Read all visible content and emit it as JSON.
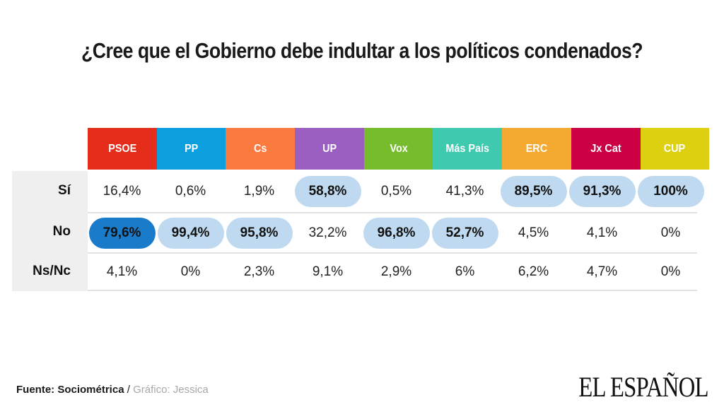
{
  "title": "¿Cree que el Gobierno debe indultar a los políticos condenados?",
  "chart_data": {
    "type": "table",
    "title": "¿Cree que el Gobierno debe indultar a los políticos condenados?",
    "columns": [
      {
        "label": "PSOE",
        "color": "#e52d1c"
      },
      {
        "label": "PP",
        "color": "#0b9fe0"
      },
      {
        "label": "Cs",
        "color": "#fb7a3f"
      },
      {
        "label": "UP",
        "color": "#9b5fc2"
      },
      {
        "label": "Vox",
        "color": "#75bd2c"
      },
      {
        "label": "Más País",
        "color": "#3fcab0"
      },
      {
        "label": "ERC",
        "color": "#f4aa31"
      },
      {
        "label": "Jx Cat",
        "color": "#cc0044"
      },
      {
        "label": "CUP",
        "color": "#dcd010"
      }
    ],
    "rows": [
      {
        "label": "Sí",
        "values": [
          "16,4%",
          "0,6%",
          "1,9%",
          "58,8%",
          "0,5%",
          "41,3%",
          "89,5%",
          "91,3%",
          "100%"
        ],
        "highlight": [
          "",
          "",
          "",
          "light",
          "",
          "",
          "light",
          "light",
          "light"
        ]
      },
      {
        "label": "No",
        "values": [
          "79,6%",
          "99,4%",
          "95,8%",
          "32,2%",
          "96,8%",
          "52,7%",
          "4,5%",
          "4,1%",
          "0%"
        ],
        "highlight": [
          "dark",
          "light",
          "light",
          "",
          "light",
          "light",
          "",
          "",
          ""
        ]
      },
      {
        "label": "Ns/Nc",
        "values": [
          "4,1%",
          "0%",
          "2,3%",
          "9,1%",
          "2,9%",
          "6%",
          "6,2%",
          "4,7%",
          "0%"
        ],
        "highlight": [
          "",
          "",
          "",
          "",
          "",
          "",
          "",
          "",
          ""
        ]
      }
    ]
  },
  "footer": {
    "source": "Fuente: Sociométrica",
    "separator": " / ",
    "credit": "Gráfico: Jessica"
  },
  "logo": "EL ESPAÑOL"
}
